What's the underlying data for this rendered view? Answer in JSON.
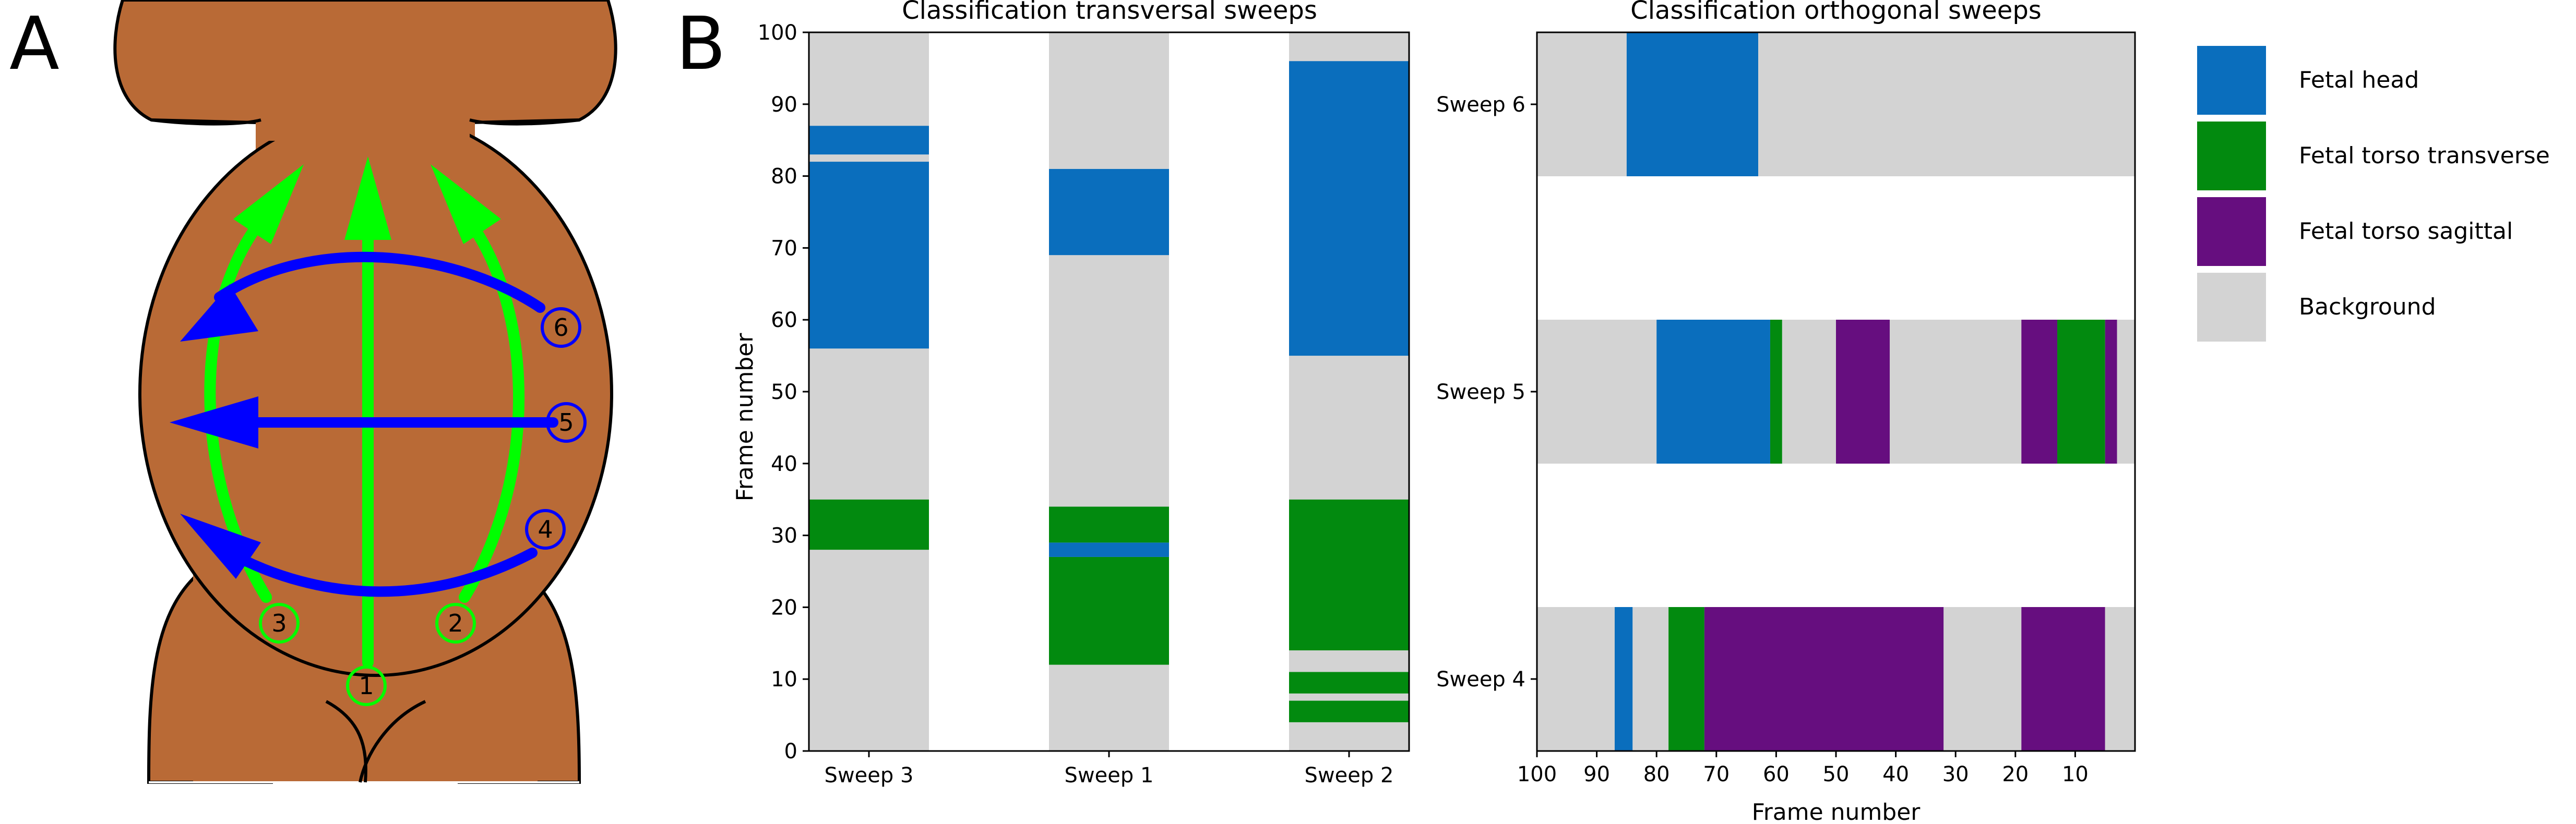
{
  "panels": {
    "a_label": "A",
    "b_label": "B"
  },
  "diagram": {
    "colors": {
      "body": "#b96a36",
      "outline": "#000000",
      "vertical_arrow": "#00ff00",
      "horizontal_arrow": "#0000ff"
    },
    "sweep_numbers": [
      "1",
      "2",
      "3",
      "4",
      "5",
      "6"
    ]
  },
  "colors": {
    "fetal_head": "#0a6ebd",
    "fetal_torso_transverse": "#028a0f",
    "fetal_torso_sagittal": "#660e7f",
    "background": "#d3d3d3"
  },
  "legend": {
    "items": [
      {
        "label": "Fetal head",
        "class": "fetal_head"
      },
      {
        "label": "Fetal torso transverse",
        "class": "fetal_torso_transverse"
      },
      {
        "label": "Fetal torso sagittal",
        "class": "fetal_torso_sagittal"
      },
      {
        "label": "Background",
        "class": "background"
      }
    ]
  },
  "chart_data": [
    {
      "type": "bar",
      "orientation": "vertical-stacked-segments",
      "title": "Classification transversal sweeps",
      "xlabel": "",
      "ylabel": "Frame number",
      "ylim": [
        0,
        100
      ],
      "yticks": [
        0,
        10,
        20,
        30,
        40,
        50,
        60,
        70,
        80,
        90,
        100
      ],
      "categories": [
        "Sweep 3",
        "Sweep 1",
        "Sweep 2"
      ],
      "series": [
        {
          "name": "Sweep 3",
          "segments": [
            {
              "from": 0,
              "to": 28,
              "class": "background"
            },
            {
              "from": 28,
              "to": 35,
              "class": "fetal_torso_transverse"
            },
            {
              "from": 35,
              "to": 56,
              "class": "background"
            },
            {
              "from": 56,
              "to": 82,
              "class": "fetal_head"
            },
            {
              "from": 82,
              "to": 83,
              "class": "background"
            },
            {
              "from": 83,
              "to": 87,
              "class": "fetal_head"
            },
            {
              "from": 87,
              "to": 100,
              "class": "background"
            }
          ]
        },
        {
          "name": "Sweep 1",
          "segments": [
            {
              "from": 0,
              "to": 12,
              "class": "background"
            },
            {
              "from": 12,
              "to": 27,
              "class": "fetal_torso_transverse"
            },
            {
              "from": 27,
              "to": 29,
              "class": "fetal_head"
            },
            {
              "from": 29,
              "to": 34,
              "class": "fetal_torso_transverse"
            },
            {
              "from": 34,
              "to": 69,
              "class": "background"
            },
            {
              "from": 69,
              "to": 81,
              "class": "fetal_head"
            },
            {
              "from": 81,
              "to": 100,
              "class": "background"
            }
          ]
        },
        {
          "name": "Sweep 2",
          "segments": [
            {
              "from": 0,
              "to": 4,
              "class": "background"
            },
            {
              "from": 4,
              "to": 7,
              "class": "fetal_torso_transverse"
            },
            {
              "from": 7,
              "to": 8,
              "class": "background"
            },
            {
              "from": 8,
              "to": 11,
              "class": "fetal_torso_transverse"
            },
            {
              "from": 11,
              "to": 14,
              "class": "background"
            },
            {
              "from": 14,
              "to": 35,
              "class": "fetal_torso_transverse"
            },
            {
              "from": 35,
              "to": 55,
              "class": "background"
            },
            {
              "from": 55,
              "to": 96,
              "class": "fetal_head"
            },
            {
              "from": 96,
              "to": 100,
              "class": "background"
            }
          ]
        }
      ]
    },
    {
      "type": "bar",
      "orientation": "horizontal-stacked-segments",
      "title": "Classification orthogonal sweeps",
      "xlabel": "Frame number",
      "ylabel": "",
      "xlim": [
        100,
        0
      ],
      "xticks": [
        100,
        90,
        80,
        70,
        60,
        50,
        40,
        30,
        20,
        10
      ],
      "categories": [
        "Sweep 6",
        "Sweep 5",
        "Sweep 4"
      ],
      "series": [
        {
          "name": "Sweep 6",
          "segments": [
            {
              "from": 100,
              "to": 85,
              "class": "background"
            },
            {
              "from": 85,
              "to": 63,
              "class": "fetal_head"
            },
            {
              "from": 63,
              "to": 0,
              "class": "background"
            }
          ]
        },
        {
          "name": "Sweep 5",
          "segments": [
            {
              "from": 100,
              "to": 80,
              "class": "background"
            },
            {
              "from": 80,
              "to": 61,
              "class": "fetal_head"
            },
            {
              "from": 61,
              "to": 59,
              "class": "fetal_torso_transverse"
            },
            {
              "from": 59,
              "to": 50,
              "class": "background"
            },
            {
              "from": 50,
              "to": 41,
              "class": "fetal_torso_sagittal"
            },
            {
              "from": 41,
              "to": 19,
              "class": "background"
            },
            {
              "from": 19,
              "to": 13,
              "class": "fetal_torso_sagittal"
            },
            {
              "from": 13,
              "to": 5,
              "class": "fetal_torso_transverse"
            },
            {
              "from": 5,
              "to": 3,
              "class": "fetal_torso_sagittal"
            },
            {
              "from": 3,
              "to": 0,
              "class": "background"
            }
          ]
        },
        {
          "name": "Sweep 4",
          "segments": [
            {
              "from": 100,
              "to": 87,
              "class": "background"
            },
            {
              "from": 87,
              "to": 84,
              "class": "fetal_head"
            },
            {
              "from": 84,
              "to": 78,
              "class": "background"
            },
            {
              "from": 78,
              "to": 72,
              "class": "fetal_torso_transverse"
            },
            {
              "from": 72,
              "to": 32,
              "class": "fetal_torso_sagittal"
            },
            {
              "from": 32,
              "to": 19,
              "class": "background"
            },
            {
              "from": 19,
              "to": 5,
              "class": "fetal_torso_sagittal"
            },
            {
              "from": 5,
              "to": 0,
              "class": "background"
            }
          ]
        }
      ]
    }
  ]
}
